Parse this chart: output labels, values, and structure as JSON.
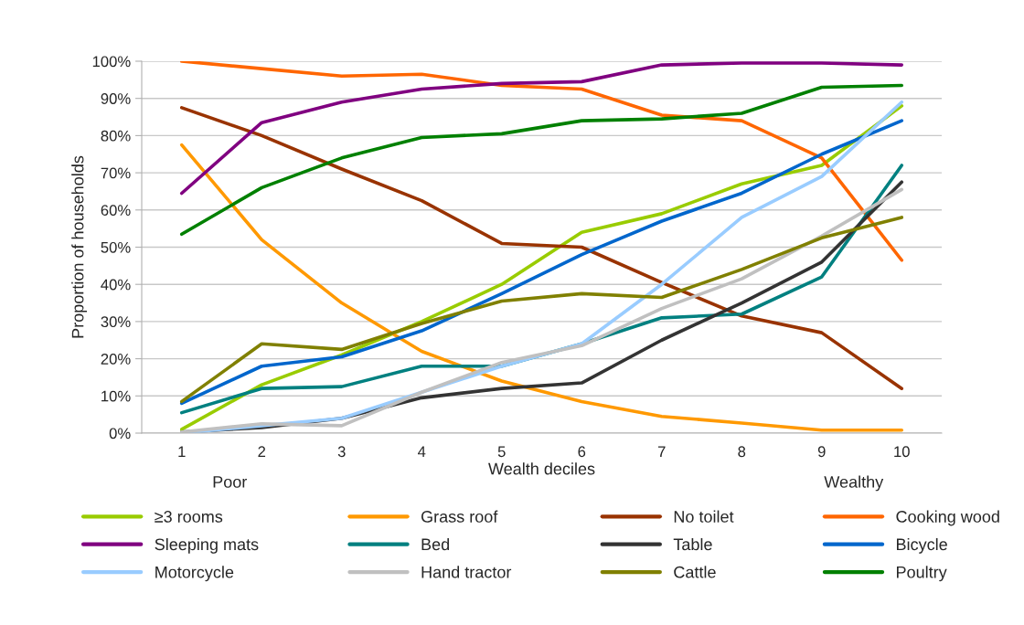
{
  "chart_data": {
    "type": "line",
    "xlabel": "Wealth deciles",
    "ylabel": "Proportion of households",
    "categories": [
      "1",
      "2",
      "3",
      "4",
      "5",
      "6",
      "7",
      "8",
      "9",
      "10"
    ],
    "ylim": [
      0,
      100
    ],
    "yticks": [
      {
        "value": 0,
        "label": "0%"
      },
      {
        "value": 10,
        "label": "10%"
      },
      {
        "value": 20,
        "label": "20%"
      },
      {
        "value": 30,
        "label": "30%"
      },
      {
        "value": 40,
        "label": "40%"
      },
      {
        "value": 50,
        "label": "50%"
      },
      {
        "value": 60,
        "label": "60%"
      },
      {
        "value": 70,
        "label": "70%"
      },
      {
        "value": 80,
        "label": "80%"
      },
      {
        "value": 90,
        "label": "90%"
      },
      {
        "value": 100,
        "label": "100%"
      }
    ],
    "grid": "y",
    "legend": "bottom",
    "marker": "none",
    "line_style": "solid",
    "annotations": [
      "Poor",
      "Wealthy"
    ],
    "series": [
      {
        "name": "≥3 rooms",
        "color": "#99cc00",
        "values": [
          1,
          13,
          21,
          30,
          40,
          54,
          59,
          67,
          72,
          88
        ]
      },
      {
        "name": "Grass roof",
        "color": "#ff9900",
        "values": [
          77.5,
          52,
          35,
          22,
          14,
          8.5,
          4.5,
          2.7,
          0.8,
          0.8
        ]
      },
      {
        "name": "No toilet",
        "color": "#993300",
        "values": [
          87.5,
          80,
          71,
          62.5,
          51,
          50,
          40.5,
          31.5,
          27,
          12
        ]
      },
      {
        "name": "Cooking wood",
        "color": "#ff6600",
        "values": [
          100,
          98,
          96,
          96.5,
          93.5,
          92.5,
          85.5,
          84,
          74,
          46.5
        ]
      },
      {
        "name": "Sleeping mats",
        "color": "#800080",
        "values": [
          64.5,
          83.5,
          89,
          92.5,
          94,
          94.5,
          99,
          99.5,
          99.5,
          99
        ]
      },
      {
        "name": "Bed",
        "color": "#008080",
        "values": [
          5.5,
          12,
          12.5,
          18,
          18,
          24,
          31,
          32,
          42,
          72
        ]
      },
      {
        "name": "Table",
        "color": "#333333",
        "values": [
          0.3,
          1.5,
          4,
          9.5,
          12,
          13.5,
          25,
          35,
          46,
          67.5
        ]
      },
      {
        "name": "Bicycle",
        "color": "#0066cc",
        "values": [
          8,
          18,
          20.5,
          27.5,
          37.5,
          48,
          57,
          64.5,
          75,
          84
        ]
      },
      {
        "name": "Motorcycle",
        "color": "#99ccff",
        "values": [
          0,
          2,
          4,
          11,
          18,
          24,
          40,
          58,
          69,
          89
        ]
      },
      {
        "name": "Hand tractor",
        "color": "#c0c0c0",
        "values": [
          0.3,
          2.5,
          2,
          11,
          19,
          23.5,
          33.5,
          41.5,
          53,
          65.5
        ]
      },
      {
        "name": "Cattle",
        "color": "#808000",
        "values": [
          8.5,
          24,
          22.5,
          29.5,
          35.5,
          37.5,
          36.5,
          44,
          52.5,
          58
        ]
      },
      {
        "name": "Poultry",
        "color": "#008000",
        "values": [
          53.5,
          66,
          74,
          79.5,
          80.5,
          84,
          84.5,
          86,
          93,
          93.5
        ]
      }
    ]
  }
}
